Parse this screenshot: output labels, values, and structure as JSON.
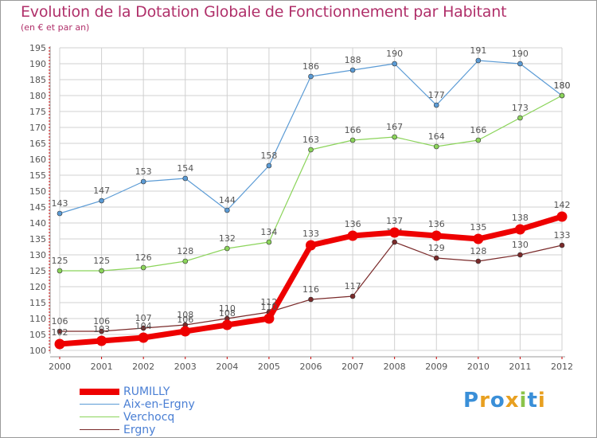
{
  "header": {
    "title": "Evolution de la Dotation Globale de Fonctionnement par Habitant",
    "subtitle": "(en € et par an)"
  },
  "colors": {
    "title": "#b0306a",
    "grid": "#d0d0d0",
    "axis": "#9a9a9a",
    "axis_ticks": "#cc0000",
    "label": "#555555"
  },
  "chart_data": {
    "type": "line",
    "title": "Evolution de la Dotation Globale de Fonctionnement par Habitant",
    "subtitle": "(en € et par an)",
    "xlabel": "",
    "ylabel": "",
    "x": [
      "2000",
      "2001",
      "2002",
      "2003",
      "2004",
      "2005",
      "2006",
      "2007",
      "2008",
      "2009",
      "2010",
      "2011",
      "2012"
    ],
    "ylim": [
      100,
      195
    ],
    "yticks": [
      "100",
      "105",
      "110",
      "115",
      "120",
      "125",
      "130",
      "135",
      "140",
      "145",
      "150",
      "155",
      "160",
      "165",
      "170",
      "175",
      "180",
      "185",
      "190",
      "195"
    ],
    "grid": true,
    "legend_position": "bottom-left",
    "series": [
      {
        "name": "Aix-en-Ergny",
        "color": "#5b9bd5",
        "style": "thin",
        "values": [
          143,
          147,
          153,
          154,
          144,
          158,
          186,
          188,
          190,
          177,
          191,
          190,
          180
        ],
        "labels": [
          "143",
          "147",
          "153",
          "154",
          "144",
          "158",
          "186",
          "188",
          "190",
          "177",
          "191",
          "190",
          "180"
        ]
      },
      {
        "name": "Verchocq",
        "color": "#8bd45a",
        "style": "thin",
        "values": [
          125,
          125,
          126,
          128,
          132,
          134,
          163,
          166,
          167,
          164,
          166,
          173,
          180
        ],
        "labels": [
          "125",
          "125",
          "126",
          "128",
          "132",
          "134",
          "163",
          "166",
          "167",
          "164",
          "166",
          "173",
          "180"
        ]
      },
      {
        "name": "Ergny",
        "color": "#7a2a2a",
        "style": "thin",
        "values": [
          106,
          106,
          107,
          108,
          110,
          112,
          116,
          117,
          134,
          129,
          128,
          130,
          133
        ],
        "labels": [
          "106",
          "106",
          "107",
          "108",
          "110",
          "112",
          "116",
          "117",
          "134",
          "129",
          "128",
          "130",
          "133"
        ]
      },
      {
        "name": "RUMILLY",
        "color": "#ee0000",
        "style": "thick",
        "values": [
          102,
          103,
          104,
          106,
          108,
          110,
          133,
          136,
          137,
          136,
          135,
          138,
          142
        ],
        "labels": [
          "102",
          "103",
          "104",
          "106",
          "108",
          "110",
          "133",
          "136",
          "137",
          "136",
          "135",
          "138",
          "142"
        ]
      }
    ]
  },
  "legend": {
    "items": [
      {
        "label": "RUMILLY",
        "color": "#ee0000",
        "text_color": "#4a7fd4"
      },
      {
        "label": "Aix-en-Ergny",
        "color": "#5b9bd5",
        "text_color": "#4a7fd4"
      },
      {
        "label": "Verchocq",
        "color": "#8bd45a",
        "text_color": "#4a7fd4"
      },
      {
        "label": "Ergny",
        "color": "#7a2a2a",
        "text_color": "#4a7fd4"
      }
    ]
  },
  "brand": {
    "logo_letters": [
      "P",
      "r",
      "o",
      "x",
      "i",
      "t",
      "i"
    ],
    "logo_colors": [
      "#3a8fd8",
      "#e8a020",
      "#3a8fd8",
      "#e8a020",
      "#8bc34a",
      "#3a8fd8",
      "#e8a020"
    ]
  }
}
